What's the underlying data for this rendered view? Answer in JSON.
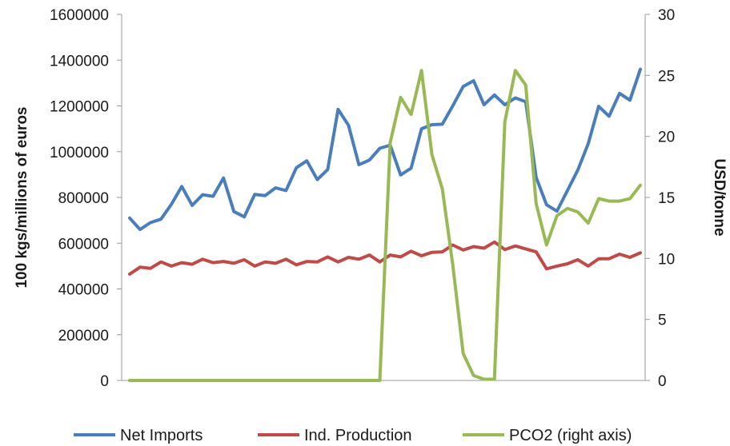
{
  "chart_data": {
    "type": "line",
    "title": "",
    "xlabel": "",
    "ylabel": "100 kgs/millions of euros",
    "y2label": "USD/tonne",
    "ylim": [
      0,
      1600000
    ],
    "y2lim": [
      0,
      30
    ],
    "yticks": [
      "0",
      "200000",
      "400000",
      "600000",
      "800000",
      "1000000",
      "1200000",
      "1400000",
      "1600000"
    ],
    "y2ticks": [
      "0",
      "5",
      "10",
      "15",
      "20",
      "25",
      "30"
    ],
    "grid": false,
    "legend_position": "bottom",
    "series": [
      {
        "name": "Net Imports",
        "axis": "left",
        "color": "#4a7ebb",
        "values": [
          710000,
          660000,
          690000,
          705000,
          770000,
          848000,
          765000,
          812000,
          805000,
          885000,
          738000,
          715000,
          813000,
          808000,
          842000,
          830000,
          930000,
          960000,
          878000,
          922000,
          1185000,
          1115000,
          943000,
          963000,
          1015000,
          1028000,
          898000,
          928000,
          1100000,
          1118000,
          1120000,
          1200000,
          1285000,
          1310000,
          1205000,
          1248000,
          1205000,
          1235000,
          1218000,
          888000,
          768000,
          740000,
          830000,
          920000,
          1035000,
          1198000,
          1155000,
          1255000,
          1225000,
          1360000
        ]
      },
      {
        "name": "Ind. Production",
        "axis": "left",
        "color": "#be4b48",
        "values": [
          465000,
          495000,
          490000,
          518000,
          500000,
          515000,
          508000,
          530000,
          515000,
          520000,
          512000,
          528000,
          500000,
          518000,
          512000,
          530000,
          505000,
          520000,
          518000,
          540000,
          518000,
          538000,
          530000,
          548000,
          518000,
          548000,
          540000,
          565000,
          545000,
          560000,
          562000,
          592000,
          570000,
          585000,
          578000,
          605000,
          572000,
          588000,
          575000,
          562000,
          488000,
          500000,
          510000,
          528000,
          500000,
          532000,
          532000,
          552000,
          538000,
          558000
        ]
      },
      {
        "name": "PCO2 (right axis)",
        "axis": "right",
        "color": "#98b954",
        "values": [
          0,
          0,
          0,
          0,
          0,
          0,
          0,
          0,
          0,
          0,
          0,
          0,
          0,
          0,
          0,
          0,
          0,
          0,
          0,
          0,
          0,
          0,
          0,
          0,
          0,
          19.5,
          23.2,
          21.8,
          25.4,
          18.5,
          15.7,
          9.5,
          2.2,
          0.4,
          0.1,
          0.1,
          21.2,
          25.4,
          24.2,
          14.5,
          11.1,
          13.5,
          14.1,
          13.8,
          12.9,
          14.9,
          14.7,
          14.7,
          14.9,
          16.0
        ]
      }
    ]
  }
}
